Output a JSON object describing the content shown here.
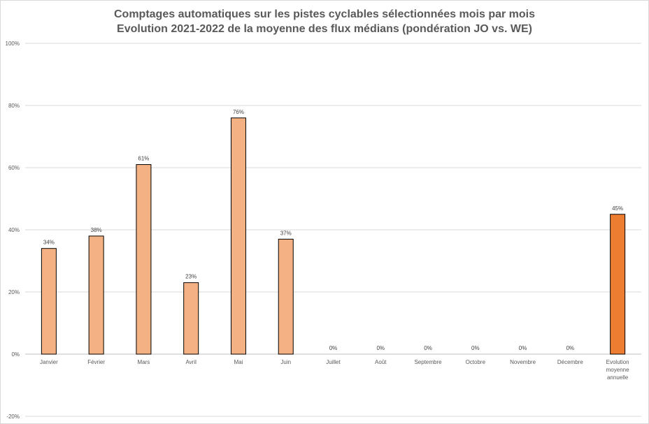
{
  "chart_data": {
    "type": "bar",
    "title": [
      "Comptages automatiques sur les pistes cyclables sélectionnées mois par mois",
      "Evolution 2021-2022 de la moyenne des flux médians (pondération JO vs. WE)"
    ],
    "categories": [
      "Janvier",
      "Février",
      "Mars",
      "Avril",
      "Mai",
      "Juin",
      "Juillet",
      "Août",
      "Septembre",
      "Octobre",
      "Novembre",
      "Décembre",
      "Evolution moyenne annuelle"
    ],
    "values": [
      34,
      38,
      61,
      23,
      76,
      37,
      0,
      0,
      0,
      0,
      0,
      0,
      45
    ],
    "data_labels": [
      "34%",
      "38%",
      "61%",
      "23%",
      "76%",
      "37%",
      "0%",
      "0%",
      "0%",
      "0%",
      "0%",
      "0%",
      "45%"
    ],
    "ylim": [
      -20,
      100
    ],
    "yticks": [
      -20,
      0,
      20,
      40,
      60,
      80,
      100
    ],
    "ytick_labels": [
      "-20%",
      "0%",
      "20%",
      "40%",
      "60%",
      "80%",
      "100%"
    ],
    "grid": true,
    "legend": "none",
    "colors": {
      "month": "#F4B183",
      "annual": "#ED7D31",
      "outline": "#000000",
      "grid": "#d9d9d9"
    }
  }
}
